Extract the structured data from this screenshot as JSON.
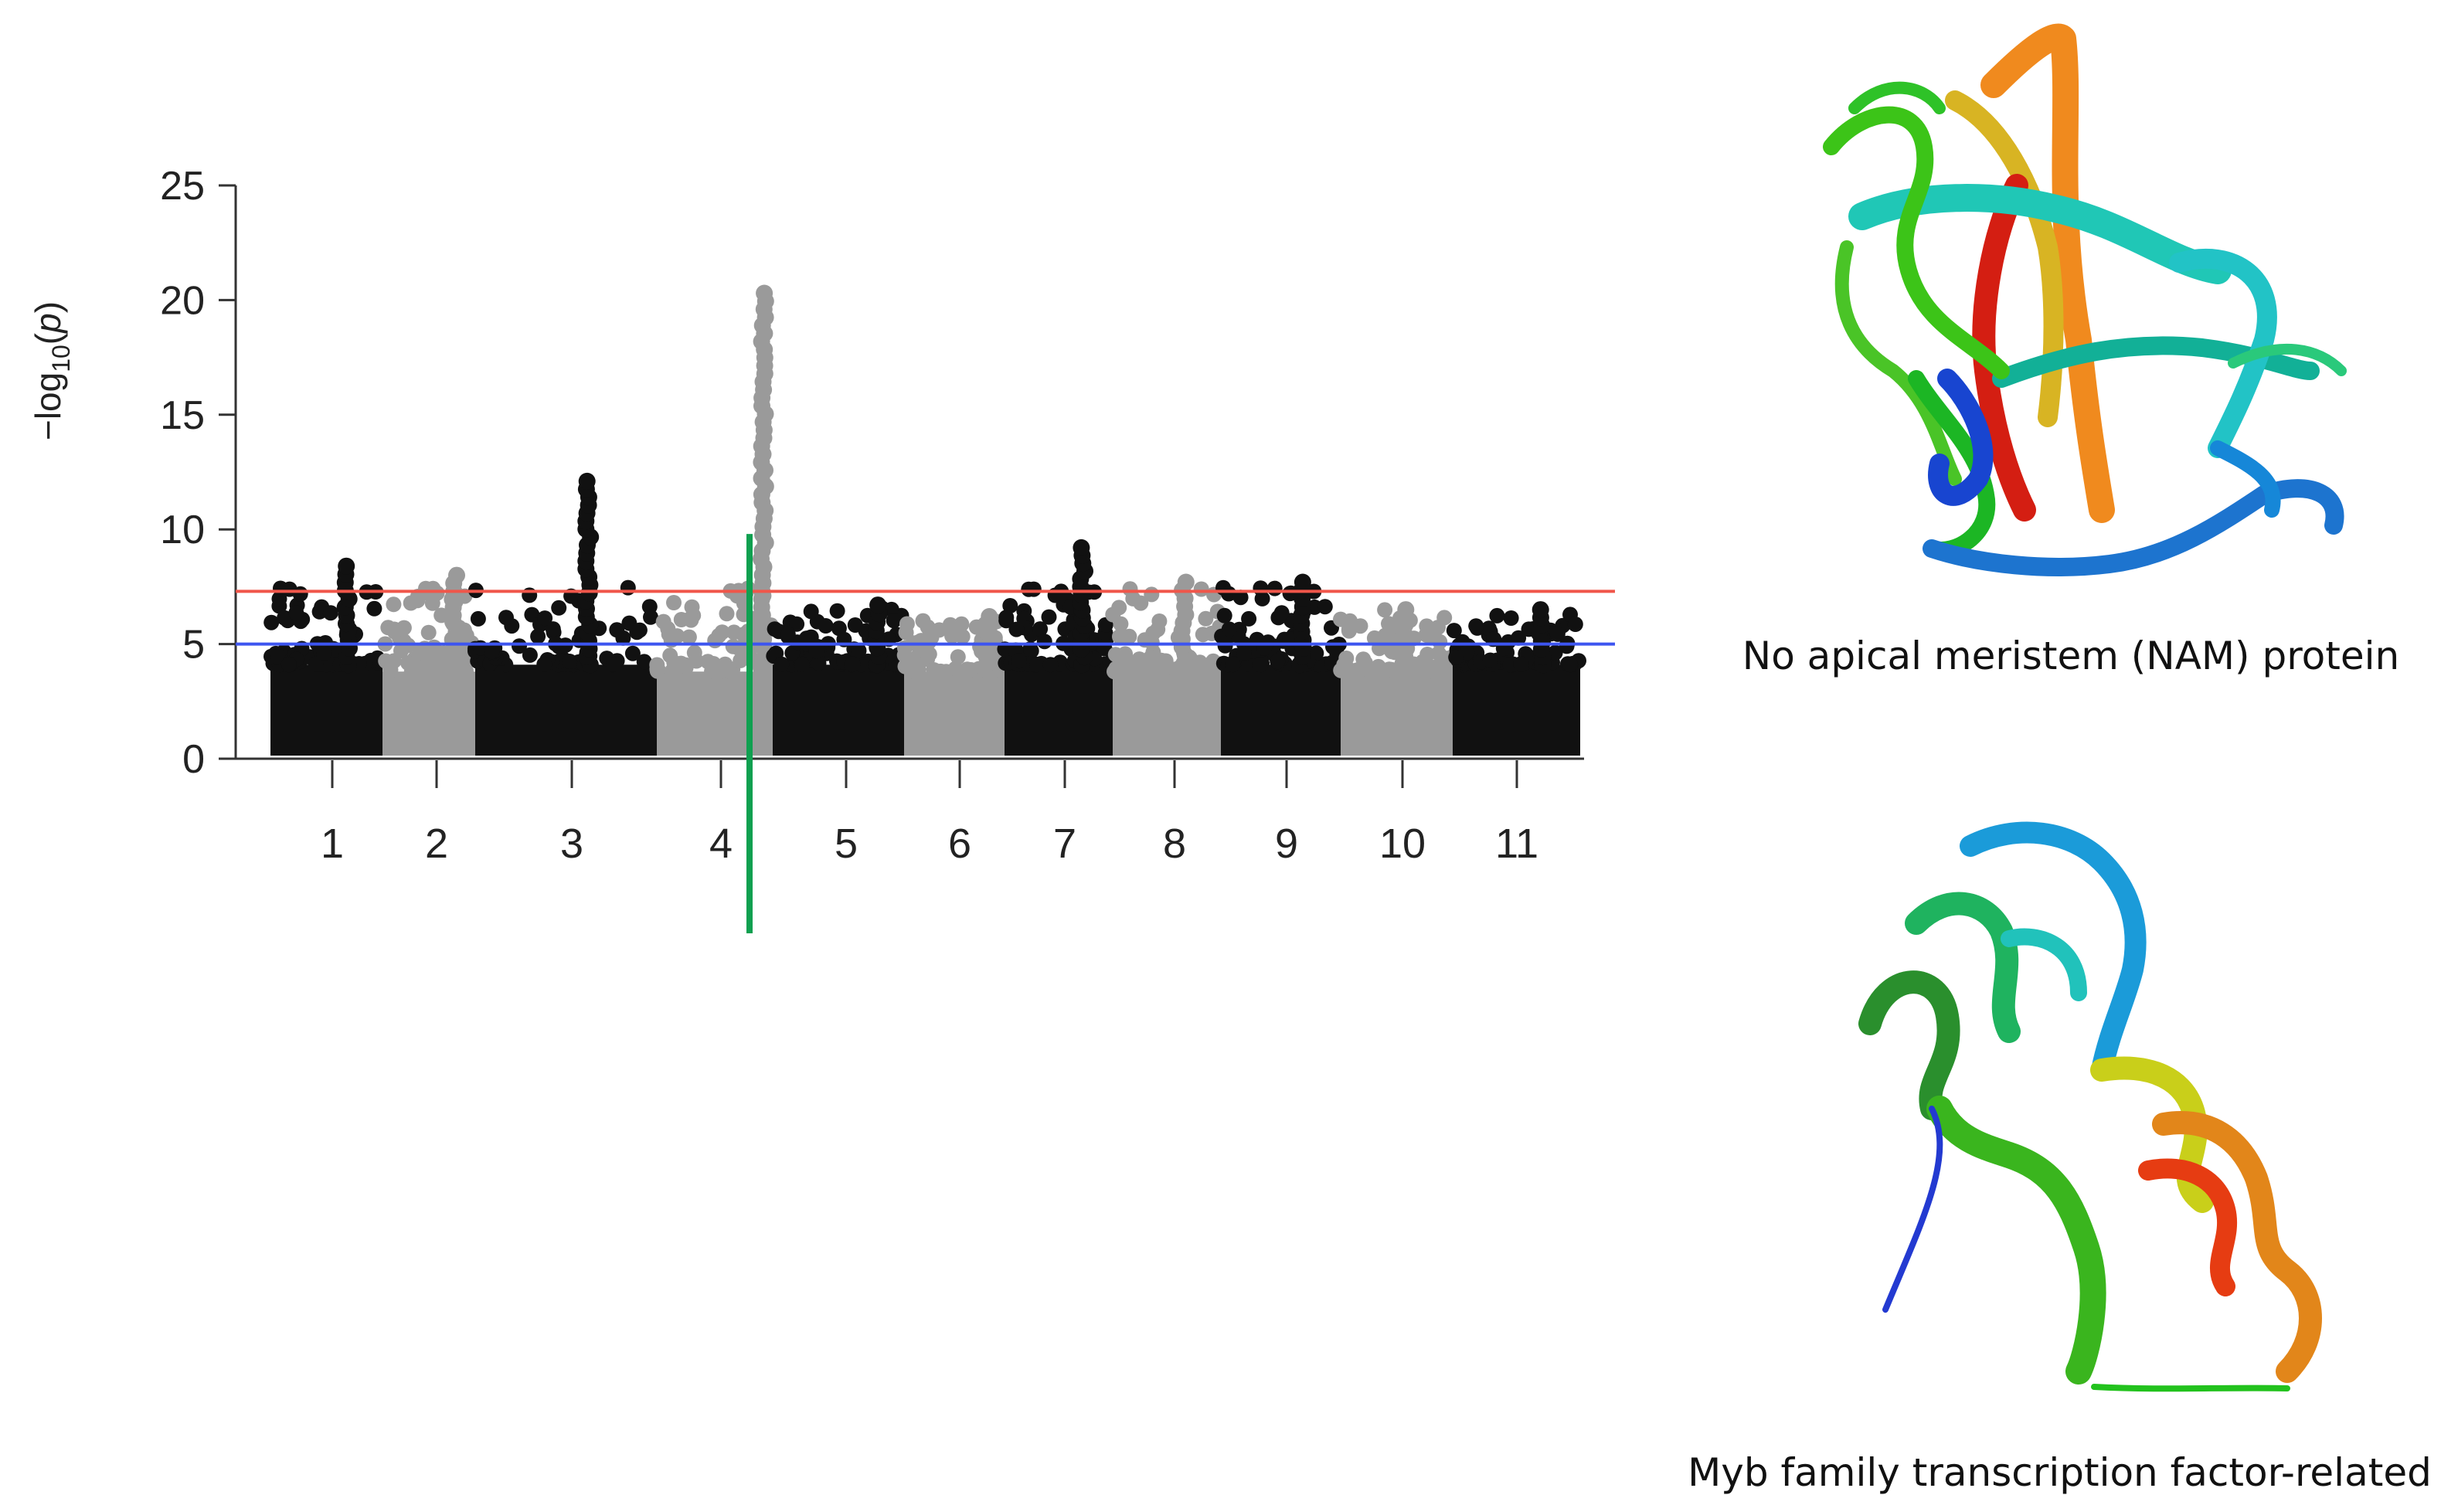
{
  "chart_data": {
    "type": "scatter",
    "subtype": "manhattan",
    "ylabel": "−log10(p)",
    "ylabel_parts": {
      "prefix": "−log",
      "subscript": "10",
      "suffix": "(",
      "italic": "p",
      "close": ")"
    },
    "xlabel": "",
    "ylim": [
      0,
      25
    ],
    "yticks": [
      0,
      5,
      10,
      15,
      20,
      25
    ],
    "grid": false,
    "chromosomes": [
      "1",
      "2",
      "3",
      "4",
      "5",
      "6",
      "7",
      "8",
      "9",
      "10",
      "11"
    ],
    "chromosome_colors": [
      "#111111",
      "#9a9a9a",
      "#111111",
      "#9a9a9a",
      "#111111",
      "#9a9a9a",
      "#111111",
      "#9a9a9a",
      "#111111",
      "#9a9a9a",
      "#111111"
    ],
    "thresholds": [
      {
        "value": 7.3,
        "color": "#f0564a"
      },
      {
        "value": 5.0,
        "color": "#3d55f0"
      }
    ],
    "highlight": {
      "chromosome": "4",
      "position": 0.8,
      "color": "#0fa050"
    },
    "peaks": [
      {
        "chromosome": "1",
        "max": 8.4
      },
      {
        "chromosome": "2",
        "max": 8.0
      },
      {
        "chromosome": "3",
        "max": 12.1
      },
      {
        "chromosome": "4",
        "max": 20.3
      },
      {
        "chromosome": "5",
        "max": 6.7
      },
      {
        "chromosome": "6",
        "max": 6.2
      },
      {
        "chromosome": "7",
        "max": 9.2
      },
      {
        "chromosome": "8",
        "max": 7.7
      },
      {
        "chromosome": "9",
        "max": 7.7
      },
      {
        "chromosome": "10",
        "max": 6.5
      },
      {
        "chromosome": "11",
        "max": 6.5
      }
    ]
  },
  "panels": {
    "nam_caption": "No apical meristem (NAM) protein",
    "myb_caption": "Myb family transcription factor-related"
  }
}
